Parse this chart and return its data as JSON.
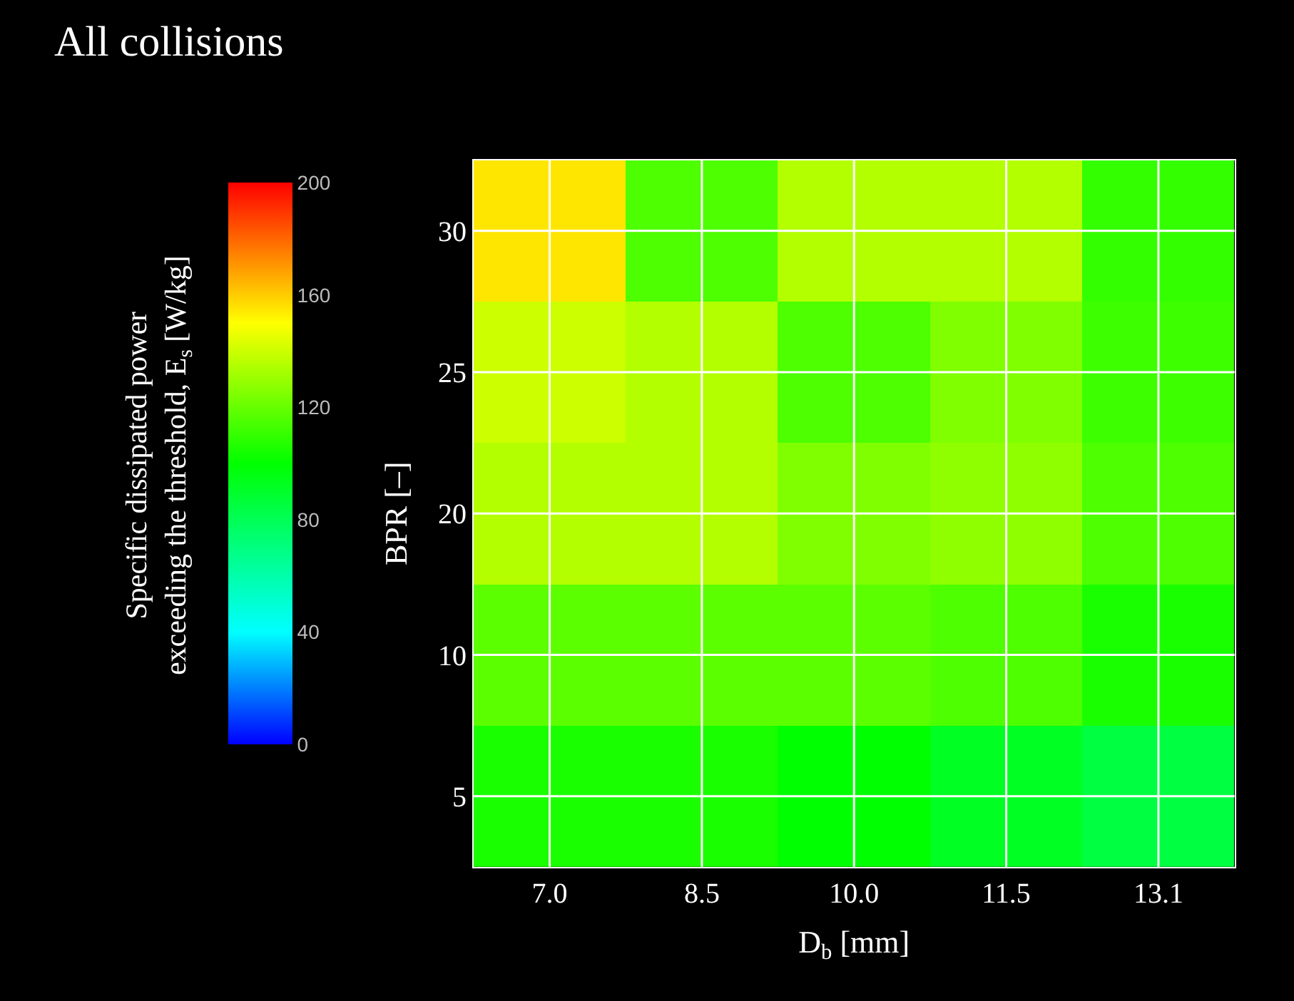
{
  "chart_data": {
    "type": "heatmap",
    "title": "All collisions",
    "xlabel": "D$_{b}$ [mm]",
    "ylabel": "BPR [–]",
    "clabel": "Specific dissipated power exceeding the threshold, E$_{s}$ [W/kg]",
    "categories": [
      "7.0",
      "8.5",
      "10.0",
      "11.5",
      "13.1"
    ],
    "y_categories": [
      "30",
      "25",
      "20",
      "10",
      "5"
    ],
    "cells": [
      [
        155,
        115,
        135,
        135,
        110
      ],
      [
        140,
        135,
        115,
        125,
        112
      ],
      [
        135,
        135,
        125,
        128,
        115
      ],
      [
        118,
        118,
        118,
        115,
        105
      ],
      [
        105,
        105,
        100,
        92,
        85
      ]
    ],
    "clim": [
      0,
      200
    ],
    "cticks": [
      0,
      40,
      80,
      120,
      160,
      200
    ],
    "grid": true
  }
}
